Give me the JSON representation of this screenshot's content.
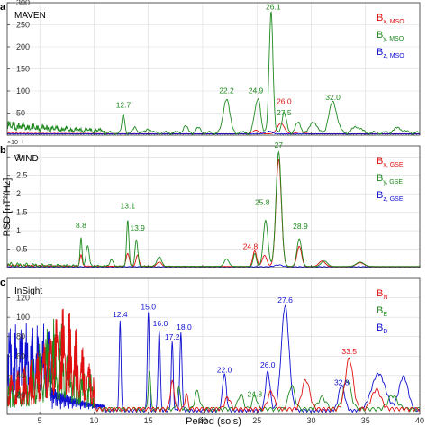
{
  "figure": {
    "xlabel": "Period (sols)",
    "ylabel": "PSD [nT²/Hz]",
    "colors": {
      "x": "#e01010",
      "y": "#1e8a1e",
      "z": "#1010d0"
    }
  },
  "chart_data": [
    {
      "type": "line",
      "panel_label": "a",
      "title": "MAVEN",
      "xlim": [
        2,
        40
      ],
      "ylim": [
        0,
        300
      ],
      "x_ticks": [
        5,
        10,
        15,
        20,
        25,
        30,
        35,
        40
      ],
      "x_tick_labels": [
        "",
        "",
        "",
        "",
        "",
        "",
        "",
        ""
      ],
      "y_ticks": [
        0,
        50,
        100,
        150,
        200,
        250,
        300
      ],
      "y_tick_labels": [
        "0",
        "50",
        "100",
        "150",
        "200",
        "250",
        "300"
      ],
      "y_exponent": "",
      "grid": true,
      "legend_position": "right",
      "series": [
        {
          "key": "x",
          "legend_main": "B",
          "legend_sub": "x, MSO"
        },
        {
          "key": "y",
          "legend_main": "B",
          "legend_sub": "y, MSO"
        },
        {
          "key": "z",
          "legend_main": "B",
          "legend_sub": "z, MSO"
        }
      ],
      "annotations": [
        {
          "text": "12.7",
          "x": 12.7,
          "y": 62,
          "series": "y"
        },
        {
          "text": "22.2",
          "x": 22.2,
          "y": 95,
          "series": "y"
        },
        {
          "text": "24.9",
          "x": 24.9,
          "y": 95,
          "series": "y"
        },
        {
          "text": "26.1",
          "x": 26.5,
          "y": 285,
          "series": "y"
        },
        {
          "text": "26.0",
          "x": 27.5,
          "y": 70,
          "series": "x"
        },
        {
          "text": "27.5",
          "x": 27.5,
          "y": 45,
          "series": "y"
        },
        {
          "text": "32.0",
          "x": 32.0,
          "y": 80,
          "series": "y"
        }
      ]
    },
    {
      "type": "line",
      "panel_label": "b",
      "title": "WIND",
      "xlim": [
        2,
        40
      ],
      "ylim": [
        0,
        3.3
      ],
      "x_ticks": [
        5,
        10,
        15,
        20,
        25,
        30,
        35,
        40
      ],
      "x_tick_labels": [
        "",
        "",
        "",
        "",
        "",
        "",
        "",
        ""
      ],
      "y_ticks": [
        0,
        0.5,
        1,
        1.5,
        2,
        2.5,
        3
      ],
      "y_tick_labels": [
        "0",
        "0.5",
        "1",
        "1.5",
        "2",
        "2.5",
        "3"
      ],
      "y_exponent": "×10⁻⁷",
      "grid": true,
      "legend_position": "right",
      "series": [
        {
          "key": "x",
          "legend_main": "B",
          "legend_sub": "x, GSE"
        },
        {
          "key": "y",
          "legend_main": "B",
          "legend_sub": "y, GSE"
        },
        {
          "key": "z",
          "legend_main": "B",
          "legend_sub": "z, GSE"
        }
      ],
      "annotations": [
        {
          "text": "8.8",
          "x": 8.8,
          "y": 1.07,
          "series": "y"
        },
        {
          "text": "13.1",
          "x": 13.1,
          "y": 1.6,
          "series": "y"
        },
        {
          "text": "13.9",
          "x": 14.0,
          "y": 1.0,
          "series": "y"
        },
        {
          "text": "24.8",
          "x": 24.4,
          "y": 0.5,
          "series": "x"
        },
        {
          "text": "25.8",
          "x": 25.5,
          "y": 1.7,
          "series": "y"
        },
        {
          "text": "27",
          "x": 27.0,
          "y": 3.25,
          "series": "y"
        },
        {
          "text": "28.9",
          "x": 29.0,
          "y": 1.05,
          "series": "y"
        }
      ]
    },
    {
      "type": "line",
      "panel_label": "c",
      "title": "InSight",
      "xlim": [
        2,
        40
      ],
      "ylim": [
        0,
        140
      ],
      "x_ticks": [
        5,
        10,
        15,
        20,
        25,
        30,
        35,
        40
      ],
      "x_tick_labels": [
        "5",
        "10",
        "15",
        "20",
        "25",
        "30",
        "35",
        "40"
      ],
      "y_ticks": [
        0,
        20,
        40,
        60,
        80,
        100,
        120
      ],
      "y_tick_labels": [
        "0",
        "20",
        "40",
        "60",
        "80",
        "100",
        "120"
      ],
      "y_exponent": "",
      "grid": true,
      "legend_position": "right",
      "series": [
        {
          "key": "x",
          "legend_main": "B",
          "legend_sub": "N"
        },
        {
          "key": "y",
          "legend_main": "B",
          "legend_sub": "E"
        },
        {
          "key": "z",
          "legend_main": "B",
          "legend_sub": "D"
        }
      ],
      "annotations": [
        {
          "text": "12.4",
          "x": 12.4,
          "y": 100,
          "series": "z"
        },
        {
          "text": "15.0",
          "x": 15.0,
          "y": 108,
          "series": "z"
        },
        {
          "text": "16.0",
          "x": 16.1,
          "y": 91,
          "series": "z"
        },
        {
          "text": "17.2",
          "x": 17.2,
          "y": 77,
          "series": "z"
        },
        {
          "text": "18.0",
          "x": 18.3,
          "y": 87,
          "series": "z"
        },
        {
          "text": "22.0",
          "x": 22.0,
          "y": 43,
          "series": "z"
        },
        {
          "text": "24.8",
          "x": 24.8,
          "y": 18,
          "series": "y"
        },
        {
          "text": "26.0",
          "x": 26.0,
          "y": 48,
          "series": "z"
        },
        {
          "text": "27.6",
          "x": 27.6,
          "y": 115,
          "series": "z"
        },
        {
          "text": "33.5",
          "x": 33.5,
          "y": 62,
          "series": "x"
        },
        {
          "text": "32.8",
          "x": 32.8,
          "y": 30,
          "series": "z"
        }
      ]
    }
  ]
}
